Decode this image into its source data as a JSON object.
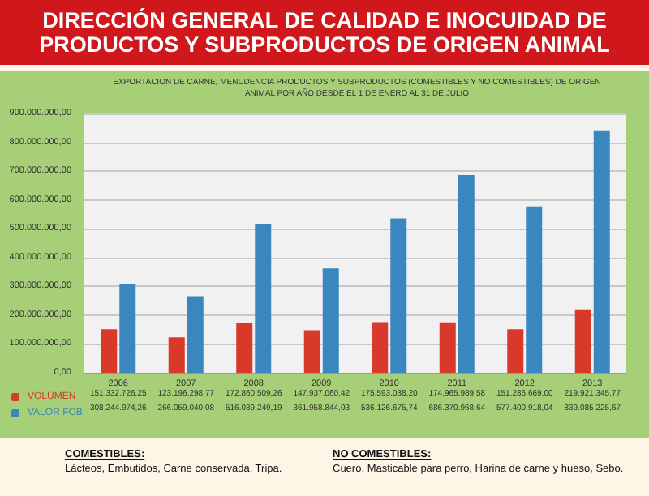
{
  "chart_data": {
    "type": "bar",
    "title": "DIRECCIÓN GENERAL DE CALIDAD E INOCUIDAD DE PRODUCTOS Y SUBPRODUCTOS DE ORIGEN ANIMAL",
    "subtitle": "EXPORTACION DE CARNE, MENUDENCIA PRODUCTOS Y SUBPRODUCTOS (COMESTIBLES Y NO COMESTIBLES) DE ORIGEN ANIMAL POR AÑO DESDE EL 1 DE ENERO AL 31 DE JULIO",
    "categories": [
      "2006",
      "2007",
      "2008",
      "2009",
      "2010",
      "2011",
      "2012",
      "2013"
    ],
    "series": [
      {
        "name": "VOLUMEN",
        "color": "#d9392b",
        "values": [
          151332726.25,
          123196298.77,
          172860509.26,
          147937060.42,
          175593038.2,
          174965989.58,
          151286669.0,
          219921345.77
        ],
        "value_labels": [
          "151.332.726,25",
          "123.196.298,77",
          "172.860.509,26",
          "147.937.060,42",
          "175.593.038,20",
          "174.965.989,58",
          "151.286.669,00",
          "219.921.345,77"
        ]
      },
      {
        "name": "VALOR FOB",
        "color": "#3a87c0",
        "values": [
          308244974.26,
          266059040.08,
          516039249.19,
          361958844.03,
          536126675.74,
          686370968.64,
          577400918.04,
          839085225.67
        ],
        "value_labels": [
          "308.244.974,26",
          "266.059.040,08",
          "516.039.249,19",
          "361.958.844,03",
          "536.126.675,74",
          "686.370.968,64",
          "577.400.918,04",
          "839.085.225,67"
        ]
      }
    ],
    "ylim": [
      0,
      900000000
    ],
    "yticks": [
      {
        "value": 0,
        "label": "0,00"
      },
      {
        "value": 100000000,
        "label": "100.000.000,00"
      },
      {
        "value": 200000000,
        "label": "200.000.000,00"
      },
      {
        "value": 300000000,
        "label": "300.000.000,00"
      },
      {
        "value": 400000000,
        "label": "400.000.000,00"
      },
      {
        "value": 500000000,
        "label": "500.000.000,00"
      },
      {
        "value": 600000000,
        "label": "600.000.000,00"
      },
      {
        "value": 700000000,
        "label": "700.000.000,00"
      },
      {
        "value": 800000000,
        "label": "800.000.000,00"
      },
      {
        "value": 900000000,
        "label": "900.000.000,00"
      }
    ],
    "grid": "y",
    "legend": "bottom left",
    "annotations": [
      "COMESTIBLES:",
      "Lácteos, Embutidos, Carne conservada, Tripa.",
      "NO COMESTIBLES:",
      "Cuero, Masticable para perro, Harina de carne y hueso, Sebo."
    ]
  }
}
